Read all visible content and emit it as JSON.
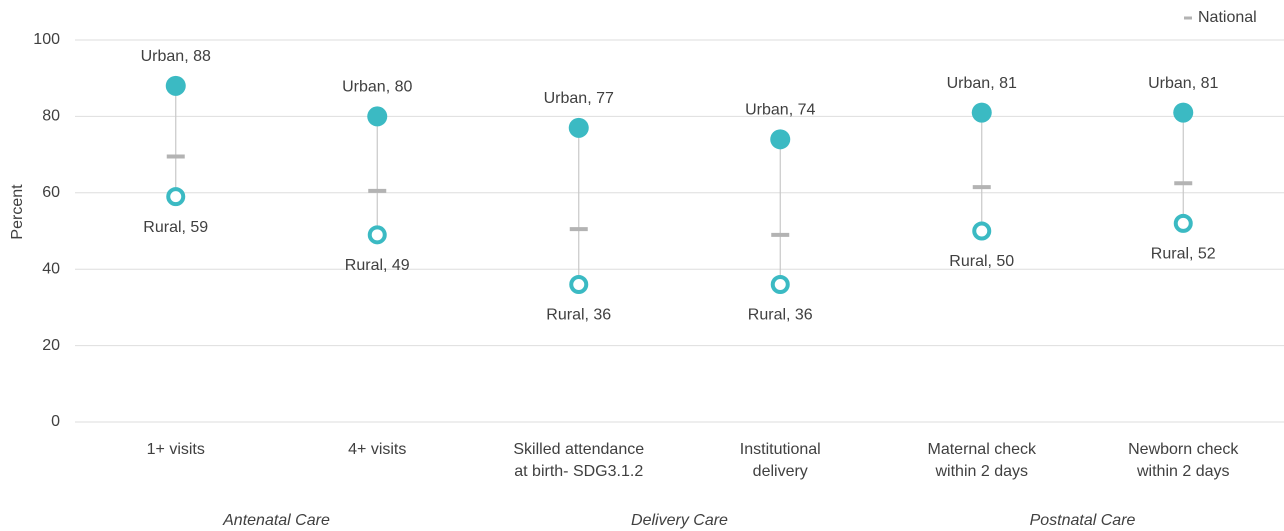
{
  "chart_data": {
    "type": "dot",
    "y_label": "Percent",
    "categories": [
      [
        "1+ visits"
      ],
      [
        "4+ visits"
      ],
      [
        "Skilled attendance",
        "at birth- SDG3.1.2"
      ],
      [
        "Institutional",
        "delivery"
      ],
      [
        "Maternal check",
        "within 2 days"
      ],
      [
        "Newborn check",
        "within 2 days"
      ]
    ],
    "groups": [
      "Antenatal Care",
      "Delivery Care",
      "Postnatal Care"
    ],
    "series": [
      {
        "name": "Urban",
        "color": "#3bbac3",
        "marker": "filled",
        "in_legend": false,
        "values": [
          88,
          80,
          77,
          74,
          81,
          81
        ],
        "value_labels": [
          "Urban, 88",
          "Urban, 80",
          "Urban, 77",
          "Urban, 74",
          "Urban, 81",
          "Urban, 81"
        ]
      },
      {
        "name": "Rural",
        "color": "#3bbac3",
        "marker": "hollow",
        "in_legend": false,
        "values": [
          59,
          49,
          36,
          36,
          50,
          52
        ],
        "value_labels": [
          "Rural, 59",
          "Rural, 49",
          "Rural, 36",
          "Rural, 36",
          "Rural, 50",
          "Rural, 52"
        ]
      },
      {
        "name": "National",
        "color": "#b3b3b3",
        "marker": "dash",
        "in_legend": true,
        "values": [
          69.5,
          60.5,
          50.5,
          49,
          61.5,
          62.5
        ]
      }
    ],
    "ylim": [
      0,
      100
    ],
    "yticks": [
      0,
      20,
      40,
      60,
      80,
      100
    ],
    "grid": true,
    "legend": "top-right"
  }
}
